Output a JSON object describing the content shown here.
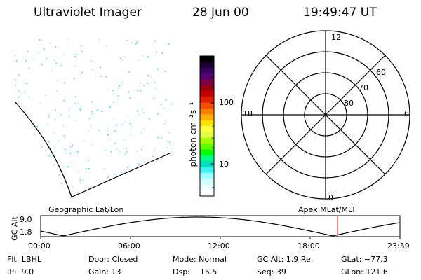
{
  "header": {
    "instrument": "Ultraviolet Imager",
    "date": "28 Jun 00",
    "time": "19:49:47 UT"
  },
  "colorbar": {
    "unit_label": "photon cm⁻²s⁻¹",
    "ticks": [
      "100",
      "10"
    ],
    "colors": [
      "#000000",
      "#1b0030",
      "#3a0060",
      "#5a0070",
      "#7a0040",
      "#9a0010",
      "#c40000",
      "#e02000",
      "#f05000",
      "#f88000",
      "#ffb000",
      "#ffe000",
      "#ffff40",
      "#e0ff40",
      "#a0ff00",
      "#60ff00",
      "#00ff00",
      "#00ff80",
      "#00e0c0",
      "#40f0f0",
      "#a0ffff",
      "#d0ffff",
      "#f0ffff",
      "#ffffff"
    ]
  },
  "polar": {
    "mlt_labels": [
      "12",
      "18",
      "6",
      "0"
    ],
    "lat_labels": [
      "60",
      "70",
      "80"
    ]
  },
  "timeline": {
    "left_label": "Geographic Lat/Lon",
    "right_label": "Apex MLat/MLT",
    "axis_title": "GC Alt",
    "y_ticks": [
      "9.0",
      "1.8"
    ],
    "x_ticks": [
      "00:00",
      "06:00",
      "12:00",
      "18:00",
      "23:59"
    ],
    "marker_time": "19:49:47",
    "marker_color": "#cc0000"
  },
  "info": {
    "row1": {
      "flt": "Flt: LBHL",
      "door": "Door: Closed",
      "mode": "Mode: Normal",
      "gcalt": "GC Alt: 1.9 Re",
      "glat": "GLat: −77.3"
    },
    "row2": {
      "ip": "IP:  9.0",
      "gain": "Gain: 13",
      "dsp": "Dsp:    15.5",
      "seq": "Seq: 39",
      "glon": "GLon: 121.6"
    }
  }
}
